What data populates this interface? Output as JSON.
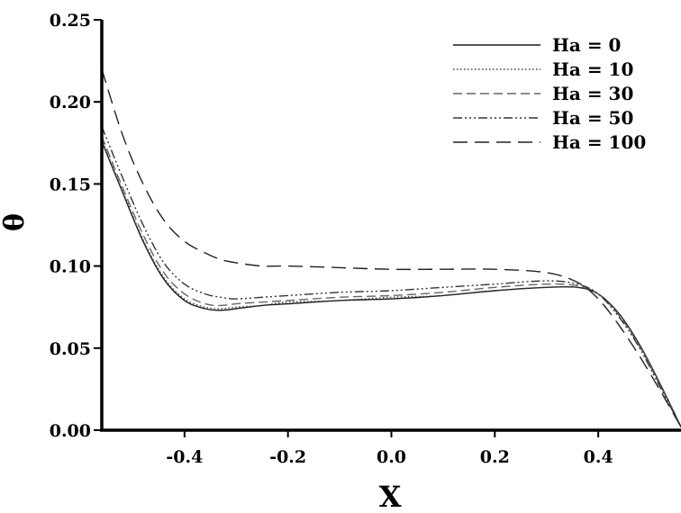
{
  "chart_data": {
    "type": "line",
    "title": "",
    "xlabel": "X",
    "ylabel": "θ",
    "xlim": [
      -0.56,
      0.56
    ],
    "ylim": [
      0,
      0.25
    ],
    "x_ticks": [
      "-0.4",
      "-0.2",
      "0.0",
      "0.2",
      "0.4"
    ],
    "y_ticks": [
      "0.00",
      "0.05",
      "0.10",
      "0.15",
      "0.20",
      "0.25"
    ],
    "legend_position": "top-right",
    "grid": false,
    "series": [
      {
        "name": "Ha = 0",
        "color": "#1a1a1a",
        "dash": "",
        "x": [
          -0.56,
          -0.52,
          -0.48,
          -0.44,
          -0.4,
          -0.36,
          -0.33,
          -0.3,
          -0.25,
          -0.2,
          -0.1,
          0.0,
          0.1,
          0.2,
          0.3,
          0.36,
          0.4,
          0.44,
          0.48,
          0.52,
          0.56
        ],
        "y": [
          0.176,
          0.145,
          0.115,
          0.092,
          0.079,
          0.074,
          0.073,
          0.074,
          0.076,
          0.077,
          0.079,
          0.08,
          0.082,
          0.085,
          0.087,
          0.087,
          0.083,
          0.071,
          0.052,
          0.028,
          0.002
        ]
      },
      {
        "name": "Ha = 10",
        "color": "#444444",
        "dash": "1.5 2.5",
        "x": [
          -0.56,
          -0.52,
          -0.48,
          -0.44,
          -0.4,
          -0.36,
          -0.33,
          -0.3,
          -0.25,
          -0.2,
          -0.1,
          0.0,
          0.1,
          0.2,
          0.3,
          0.36,
          0.4,
          0.44,
          0.48,
          0.52,
          0.56
        ],
        "y": [
          0.177,
          0.146,
          0.116,
          0.093,
          0.08,
          0.075,
          0.074,
          0.075,
          0.076,
          0.078,
          0.079,
          0.081,
          0.082,
          0.085,
          0.087,
          0.087,
          0.083,
          0.071,
          0.052,
          0.028,
          0.002
        ]
      },
      {
        "name": "Ha = 30",
        "color": "#666666",
        "dash": "10 5",
        "x": [
          -0.56,
          -0.52,
          -0.48,
          -0.44,
          -0.4,
          -0.36,
          -0.33,
          -0.3,
          -0.25,
          -0.2,
          -0.1,
          0.0,
          0.1,
          0.2,
          0.3,
          0.36,
          0.4,
          0.44,
          0.48,
          0.52,
          0.56
        ],
        "y": [
          0.179,
          0.148,
          0.119,
          0.096,
          0.083,
          0.077,
          0.076,
          0.077,
          0.078,
          0.079,
          0.081,
          0.082,
          0.084,
          0.087,
          0.089,
          0.088,
          0.083,
          0.07,
          0.051,
          0.027,
          0.002
        ]
      },
      {
        "name": "Ha = 50",
        "color": "#333333",
        "dash": "10 3 2 3 2 3 2 3",
        "x": [
          -0.56,
          -0.52,
          -0.48,
          -0.44,
          -0.4,
          -0.36,
          -0.33,
          -0.3,
          -0.25,
          -0.2,
          -0.1,
          0.0,
          0.1,
          0.2,
          0.3,
          0.36,
          0.4,
          0.44,
          0.48,
          0.52,
          0.56
        ],
        "y": [
          0.185,
          0.154,
          0.125,
          0.102,
          0.089,
          0.083,
          0.081,
          0.08,
          0.081,
          0.082,
          0.084,
          0.085,
          0.087,
          0.089,
          0.091,
          0.089,
          0.083,
          0.069,
          0.05,
          0.026,
          0.002
        ]
      },
      {
        "name": "Ha = 100",
        "color": "#222222",
        "dash": "16 8",
        "x": [
          -0.56,
          -0.52,
          -0.48,
          -0.44,
          -0.4,
          -0.36,
          -0.33,
          -0.3,
          -0.25,
          -0.2,
          -0.1,
          0.0,
          0.1,
          0.2,
          0.3,
          0.36,
          0.4,
          0.44,
          0.48,
          0.52,
          0.56
        ],
        "y": [
          0.22,
          0.18,
          0.15,
          0.128,
          0.115,
          0.108,
          0.104,
          0.102,
          0.1,
          0.1,
          0.099,
          0.098,
          0.098,
          0.098,
          0.096,
          0.09,
          0.08,
          0.064,
          0.045,
          0.024,
          0.002
        ]
      }
    ]
  }
}
